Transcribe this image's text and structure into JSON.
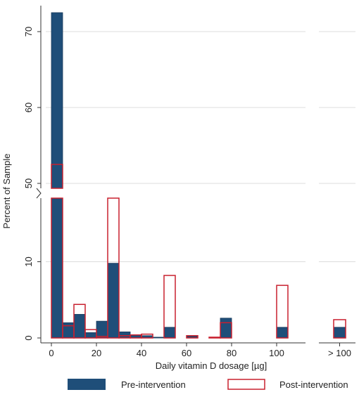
{
  "chart_data": {
    "type": "bar",
    "title": "",
    "xlabel": "Daily vitamin D dosage [µg]",
    "ylabel": "Percent of Sample",
    "x_ticks": [
      "0",
      "20",
      "40",
      "60",
      "80",
      "100"
    ],
    "x_tick_extra": "> 100",
    "y_ticks_lower": [
      "0",
      "10"
    ],
    "y_ticks_upper": [
      "50",
      "60",
      "70"
    ],
    "y_axis_break": {
      "lower_range": [
        0,
        15
      ],
      "upper_range": [
        49,
        73
      ]
    },
    "xlim": [
      -3,
      110
    ],
    "grid": true,
    "legend_position": "bottom",
    "bin_width": 5,
    "series": [
      {
        "name": "Pre-intervention",
        "style": "filled",
        "color": "#1f4e79",
        "bars": [
          {
            "x": 0,
            "value": 72.5
          },
          {
            "x": 5,
            "value": 2.0
          },
          {
            "x": 10,
            "value": 3.1
          },
          {
            "x": 15,
            "value": 0.7
          },
          {
            "x": 20,
            "value": 2.2
          },
          {
            "x": 25,
            "value": 9.8
          },
          {
            "x": 30,
            "value": 0.8
          },
          {
            "x": 35,
            "value": 0.4
          },
          {
            "x": 40,
            "value": 0.3
          },
          {
            "x": 45,
            "value": 0.1
          },
          {
            "x": 50,
            "value": 1.4
          },
          {
            "x": 60,
            "value": 0.2
          },
          {
            "x": 70,
            "value": 0.1
          },
          {
            "x": 75,
            "value": 2.6
          },
          {
            "x": 100,
            "value": 1.4
          },
          {
            "x": ">100",
            "value": 1.4
          }
        ]
      },
      {
        "name": "Post-intervention",
        "style": "outline",
        "color": "#c8202f",
        "bars": [
          {
            "x": 0,
            "value": 52.5
          },
          {
            "x": 5,
            "value": 1.6
          },
          {
            "x": 10,
            "value": 4.4
          },
          {
            "x": 15,
            "value": 1.1
          },
          {
            "x": 20,
            "value": 0.2
          },
          {
            "x": 25,
            "value": 17.7
          },
          {
            "x": 30,
            "value": 0.3
          },
          {
            "x": 35,
            "value": 0.4
          },
          {
            "x": 40,
            "value": 0.5
          },
          {
            "x": 50,
            "value": 8.2
          },
          {
            "x": 60,
            "value": 0.3
          },
          {
            "x": 70,
            "value": 0.1
          },
          {
            "x": 75,
            "value": 2.0
          },
          {
            "x": 100,
            "value": 6.9
          },
          {
            "x": ">100",
            "value": 2.4
          }
        ]
      }
    ]
  }
}
